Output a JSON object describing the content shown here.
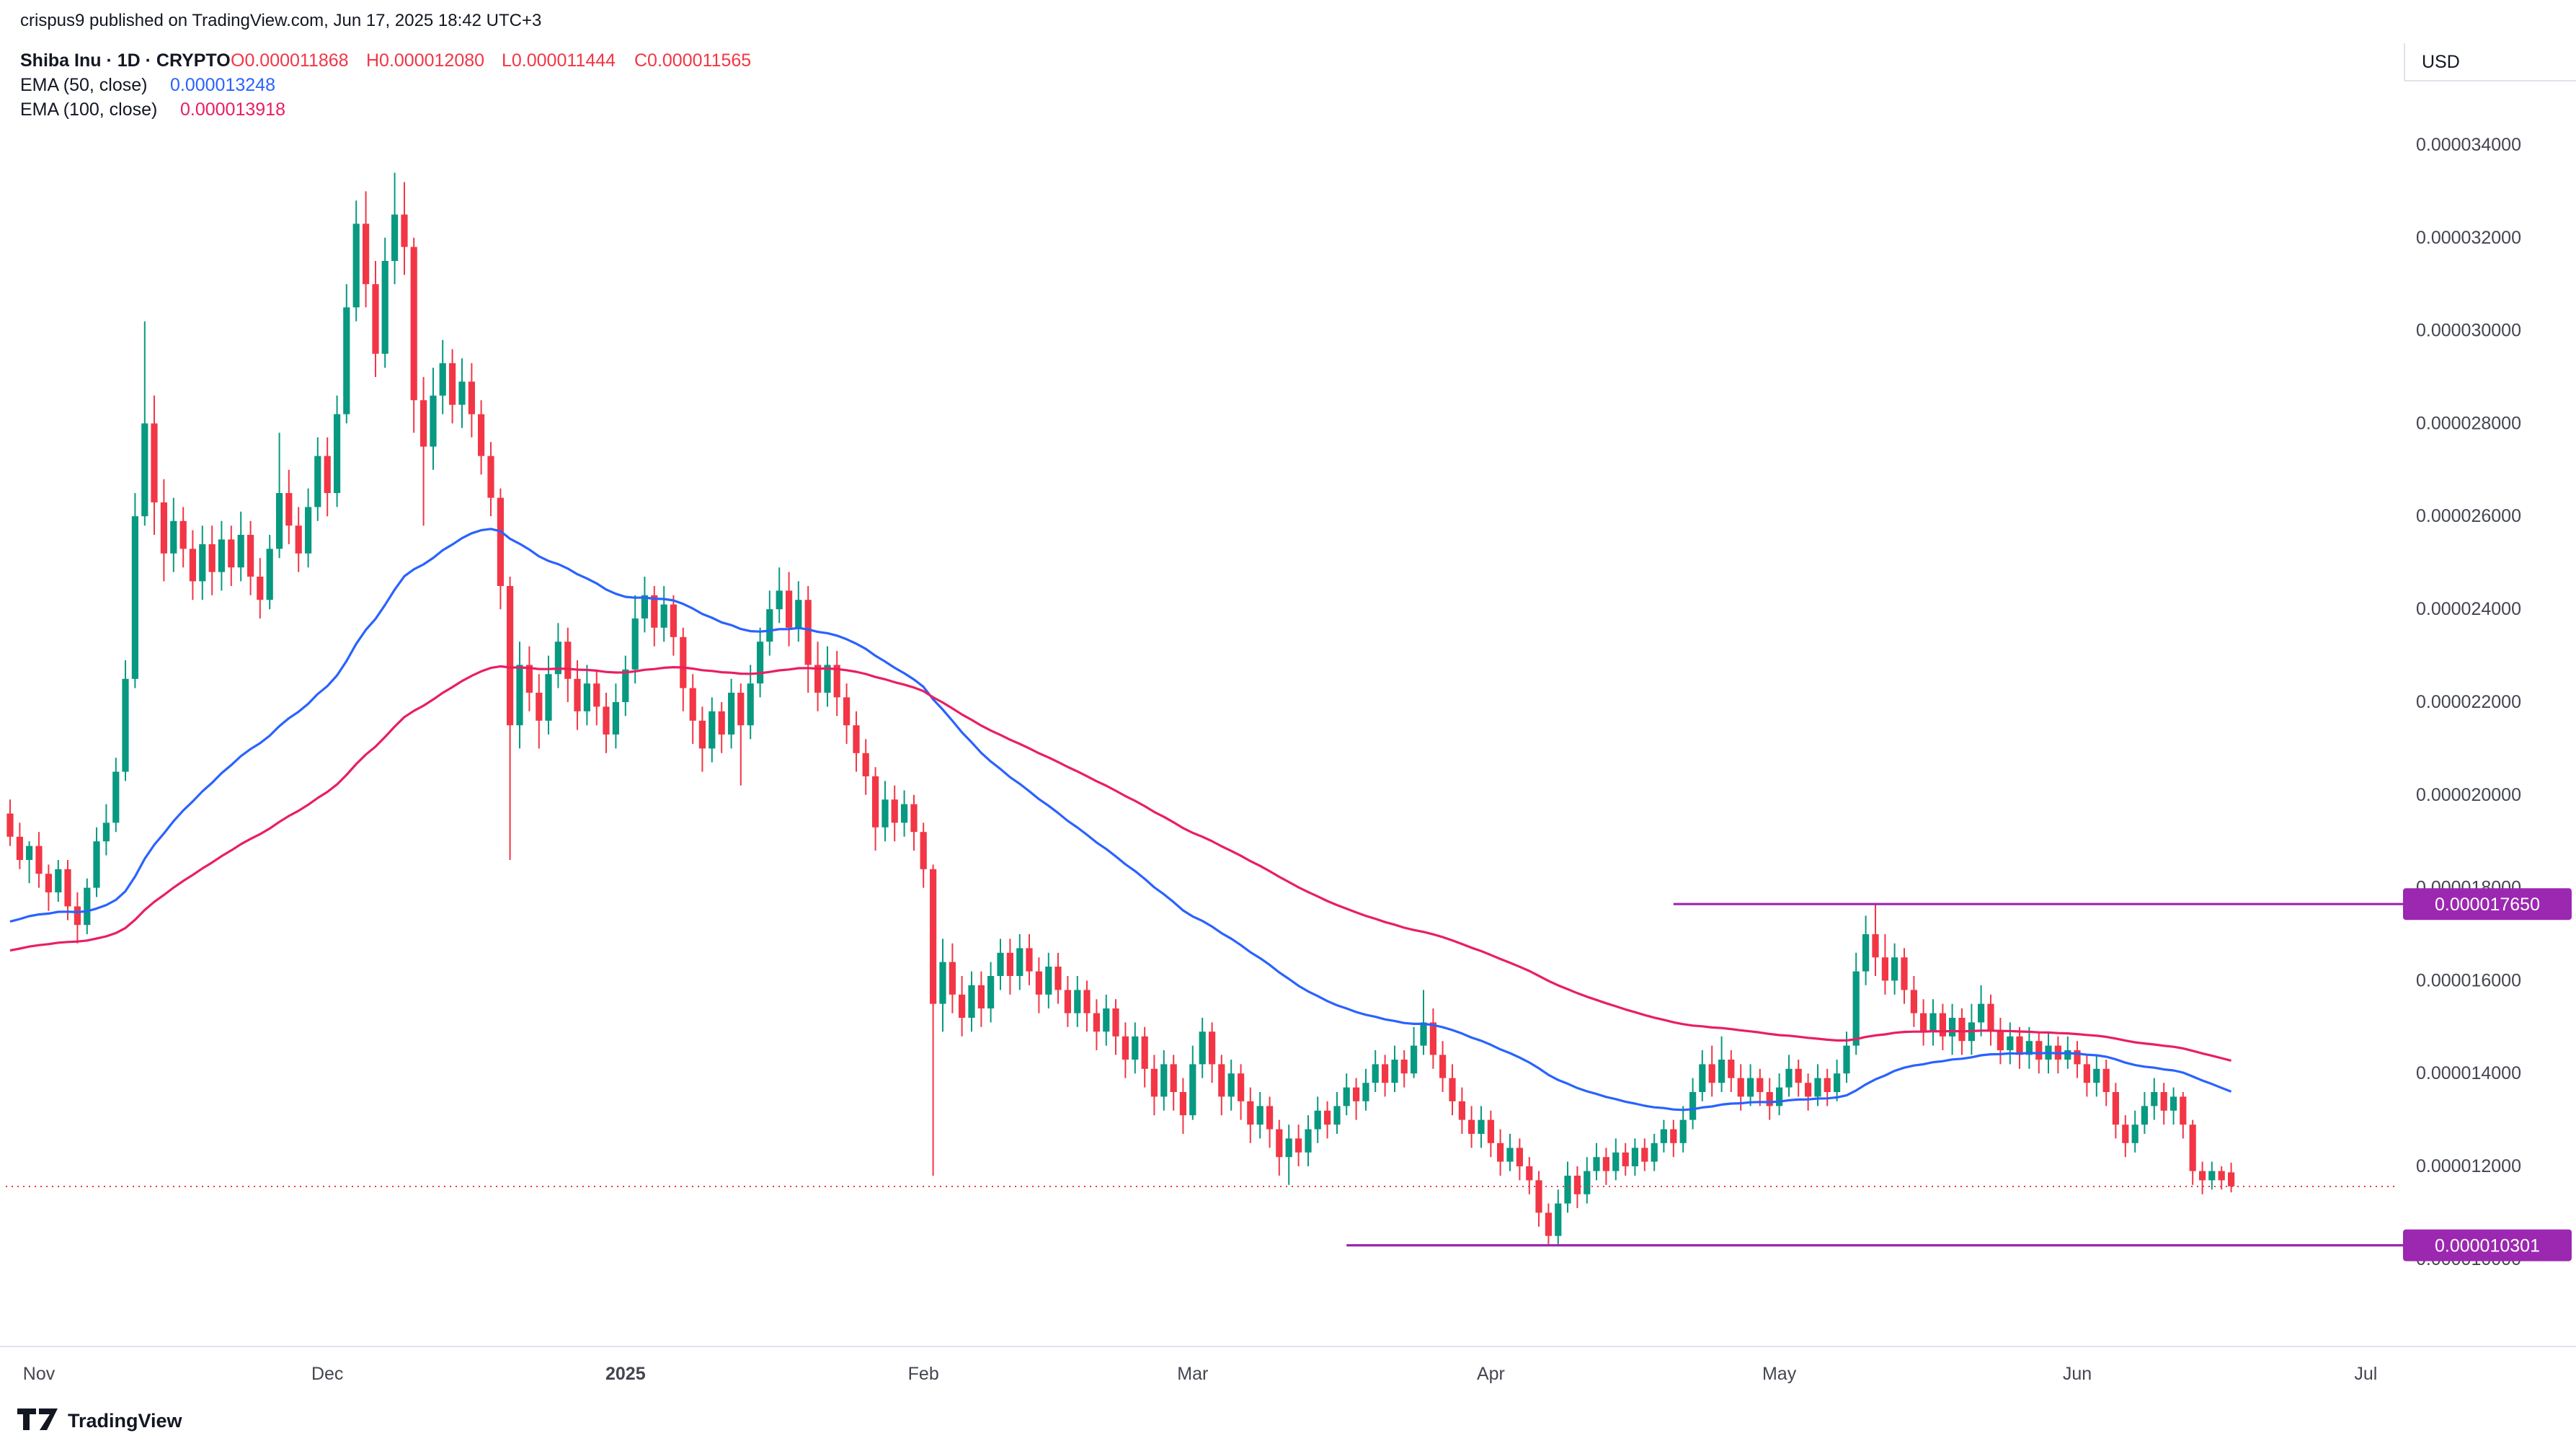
{
  "header": {
    "published": "crispus9 published on TradingView.com, Jun 17, 2025 18:42 UTC+3"
  },
  "legend": {
    "symbol": "Shiba Inu · 1D · CRYPTO",
    "o": "O0.000011868",
    "h": "H0.000012080",
    "l": "L0.000011444",
    "c": "C0.000011565",
    "ema50_label": "EMA (50, close)",
    "ema50_value": "0.000013248",
    "ema100_label": "EMA (100, close)",
    "ema100_value": "0.000013918"
  },
  "axis": {
    "currency": "USD",
    "price_ticks": [
      "0.000034000",
      "0.000032000",
      "0.000030000",
      "0.000028000",
      "0.000026000",
      "0.000024000",
      "0.000022000",
      "0.000020000",
      "0.000018000",
      "0.000016000",
      "0.000014000",
      "0.000012000",
      "0.000010000"
    ],
    "time_ticks": [
      {
        "label": "Nov",
        "day": 3
      },
      {
        "label": "Dec",
        "day": 33
      },
      {
        "label": "2025",
        "day": 64,
        "bold": true
      },
      {
        "label": "Feb",
        "day": 95
      },
      {
        "label": "Mar",
        "day": 123
      },
      {
        "label": "Apr",
        "day": 154
      },
      {
        "label": "May",
        "day": 184
      },
      {
        "label": "Jun",
        "day": 215
      },
      {
        "label": "Jul",
        "day": 245
      }
    ]
  },
  "levels": [
    {
      "label": "0.000017650",
      "value_micro": 17.65,
      "from_day": 173,
      "role": "resistance"
    },
    {
      "label": "0.000010301",
      "value_micro": 10.301,
      "from_day": 139,
      "role": "support"
    }
  ],
  "current_price": {
    "label": "0.000011565",
    "value_micro": 11.565
  },
  "colors": {
    "up": "#089981",
    "down": "#F23645",
    "level": "#9C27B0",
    "current_line": "#F23645",
    "ema50": "#2962FF",
    "ema100": "#E91E63",
    "axis_text": "#434651",
    "text": "#131722"
  },
  "footer": {
    "brand": "TradingView"
  },
  "chart_data": {
    "type": "candlestick",
    "symbol": "Shiba Inu",
    "interval": "1D",
    "market": "CRYPTO",
    "unit": "micro-USD (price values are 1e-6 USD)",
    "ohlc_format": [
      "open",
      "high",
      "low",
      "close"
    ],
    "x_range": "Oct 29, 2024 – Jun 17, 2025 (daily)",
    "ylim_micro": [
      8.12,
      37.12
    ],
    "grid": false,
    "emas": [
      {
        "period": 50,
        "color": "#2962FF",
        "seed_micro": 17.2,
        "last_value": "0.000013248"
      },
      {
        "period": 100,
        "color": "#E91E63",
        "seed_micro": 16.6,
        "last_value": "0.000013918"
      }
    ],
    "candles": [
      [
        19.6,
        19.9,
        18.9,
        19.1
      ],
      [
        19.1,
        19.4,
        18.4,
        18.6
      ],
      [
        18.6,
        19.0,
        18.1,
        18.9
      ],
      [
        18.9,
        19.2,
        18.0,
        18.3
      ],
      [
        18.3,
        18.5,
        17.5,
        17.9
      ],
      [
        17.9,
        18.6,
        17.7,
        18.4
      ],
      [
        18.4,
        18.6,
        17.3,
        17.6
      ],
      [
        17.6,
        17.9,
        16.8,
        17.2
      ],
      [
        17.2,
        18.2,
        17.0,
        18.0
      ],
      [
        18.0,
        19.3,
        17.8,
        19.0
      ],
      [
        19.0,
        19.8,
        18.7,
        19.4
      ],
      [
        19.4,
        20.8,
        19.2,
        20.5
      ],
      [
        20.5,
        22.9,
        20.3,
        22.5
      ],
      [
        22.5,
        26.5,
        22.3,
        26.0
      ],
      [
        26.0,
        30.2,
        25.8,
        28.0
      ],
      [
        28.0,
        28.6,
        25.6,
        26.3
      ],
      [
        26.3,
        26.8,
        24.6,
        25.2
      ],
      [
        25.2,
        26.4,
        24.8,
        25.9
      ],
      [
        25.9,
        26.2,
        24.9,
        25.3
      ],
      [
        25.3,
        25.7,
        24.2,
        24.6
      ],
      [
        24.6,
        25.8,
        24.2,
        25.4
      ],
      [
        25.4,
        25.8,
        24.3,
        24.8
      ],
      [
        24.8,
        25.9,
        24.4,
        25.5
      ],
      [
        25.5,
        25.8,
        24.5,
        24.9
      ],
      [
        24.9,
        26.1,
        24.6,
        25.6
      ],
      [
        25.6,
        25.9,
        24.3,
        24.7
      ],
      [
        24.7,
        25.1,
        23.8,
        24.2
      ],
      [
        24.2,
        25.6,
        24.0,
        25.3
      ],
      [
        25.3,
        27.8,
        25.1,
        26.5
      ],
      [
        26.5,
        27.0,
        25.4,
        25.8
      ],
      [
        25.8,
        26.2,
        24.8,
        25.2
      ],
      [
        25.2,
        26.6,
        24.9,
        26.2
      ],
      [
        26.2,
        27.7,
        25.9,
        27.3
      ],
      [
        27.3,
        27.7,
        26.0,
        26.5
      ],
      [
        26.5,
        28.6,
        26.2,
        28.2
      ],
      [
        28.2,
        31.0,
        28.0,
        30.5
      ],
      [
        30.5,
        32.8,
        30.2,
        32.3
      ],
      [
        32.3,
        33.0,
        30.5,
        31.0
      ],
      [
        31.0,
        31.5,
        29.0,
        29.5
      ],
      [
        29.5,
        32.0,
        29.2,
        31.5
      ],
      [
        31.5,
        33.4,
        31.0,
        32.5
      ],
      [
        32.5,
        33.2,
        31.2,
        31.8
      ],
      [
        31.8,
        32.0,
        27.8,
        28.5
      ],
      [
        28.5,
        29.0,
        25.8,
        27.5
      ],
      [
        27.5,
        29.2,
        27.0,
        28.6
      ],
      [
        28.6,
        29.8,
        28.2,
        29.3
      ],
      [
        29.3,
        29.6,
        28.0,
        28.4
      ],
      [
        28.4,
        29.4,
        27.9,
        28.9
      ],
      [
        28.9,
        29.3,
        27.7,
        28.2
      ],
      [
        28.2,
        28.5,
        26.9,
        27.3
      ],
      [
        27.3,
        27.6,
        26.0,
        26.4
      ],
      [
        26.4,
        26.6,
        24.0,
        24.5
      ],
      [
        24.5,
        24.7,
        18.6,
        21.5
      ],
      [
        21.5,
        23.3,
        21.0,
        22.8
      ],
      [
        22.8,
        23.2,
        21.8,
        22.2
      ],
      [
        22.2,
        22.6,
        21.0,
        21.6
      ],
      [
        21.6,
        23.0,
        21.3,
        22.6
      ],
      [
        22.6,
        23.7,
        22.3,
        23.3
      ],
      [
        23.3,
        23.6,
        22.0,
        22.5
      ],
      [
        22.5,
        22.9,
        21.4,
        21.8
      ],
      [
        21.8,
        22.8,
        21.5,
        22.4
      ],
      [
        22.4,
        22.7,
        21.5,
        21.9
      ],
      [
        21.9,
        22.2,
        20.9,
        21.3
      ],
      [
        21.3,
        22.4,
        21.0,
        22.0
      ],
      [
        22.0,
        23.0,
        21.7,
        22.7
      ],
      [
        22.7,
        24.3,
        22.4,
        23.8
      ],
      [
        23.8,
        24.7,
        23.5,
        24.3
      ],
      [
        24.3,
        24.5,
        23.2,
        23.6
      ],
      [
        23.6,
        24.5,
        23.3,
        24.1
      ],
      [
        24.1,
        24.3,
        23.0,
        23.4
      ],
      [
        23.4,
        23.6,
        21.8,
        22.3
      ],
      [
        22.3,
        22.6,
        21.1,
        21.6
      ],
      [
        21.6,
        21.9,
        20.5,
        21.0
      ],
      [
        21.0,
        22.1,
        20.7,
        21.8
      ],
      [
        21.8,
        22.0,
        20.9,
        21.3
      ],
      [
        21.3,
        22.5,
        21.0,
        22.2
      ],
      [
        22.2,
        22.4,
        20.2,
        21.5
      ],
      [
        21.5,
        22.8,
        21.2,
        22.4
      ],
      [
        22.4,
        23.6,
        22.1,
        23.3
      ],
      [
        23.3,
        24.4,
        23.0,
        24.0
      ],
      [
        24.0,
        24.9,
        23.7,
        24.4
      ],
      [
        24.4,
        24.8,
        23.2,
        23.6
      ],
      [
        23.6,
        24.6,
        23.3,
        24.2
      ],
      [
        24.2,
        24.5,
        22.2,
        22.8
      ],
      [
        22.8,
        23.3,
        21.8,
        22.2
      ],
      [
        22.2,
        23.2,
        21.9,
        22.8
      ],
      [
        22.8,
        23.1,
        21.7,
        22.1
      ],
      [
        22.1,
        22.4,
        21.1,
        21.5
      ],
      [
        21.5,
        21.8,
        20.5,
        20.9
      ],
      [
        20.9,
        21.2,
        20.0,
        20.4
      ],
      [
        20.4,
        20.6,
        18.8,
        19.3
      ],
      [
        19.3,
        20.3,
        19.0,
        19.9
      ],
      [
        19.9,
        20.2,
        19.0,
        19.4
      ],
      [
        19.4,
        20.1,
        19.1,
        19.8
      ],
      [
        19.8,
        20.0,
        18.8,
        19.2
      ],
      [
        19.2,
        19.4,
        18.0,
        18.4
      ],
      [
        18.4,
        18.5,
        11.8,
        15.5
      ],
      [
        15.5,
        16.9,
        14.9,
        16.4
      ],
      [
        16.4,
        16.8,
        15.3,
        15.7
      ],
      [
        15.7,
        16.1,
        14.8,
        15.2
      ],
      [
        15.2,
        16.2,
        14.9,
        15.9
      ],
      [
        15.9,
        16.2,
        15.0,
        15.4
      ],
      [
        15.4,
        16.4,
        15.1,
        16.1
      ],
      [
        16.1,
        16.9,
        15.8,
        16.6
      ],
      [
        16.6,
        16.9,
        15.7,
        16.1
      ],
      [
        16.1,
        17.0,
        15.8,
        16.7
      ],
      [
        16.7,
        17.0,
        15.9,
        16.2
      ],
      [
        16.2,
        16.5,
        15.3,
        15.7
      ],
      [
        15.7,
        16.6,
        15.4,
        16.3
      ],
      [
        16.3,
        16.6,
        15.5,
        15.8
      ],
      [
        15.8,
        16.1,
        15.0,
        15.3
      ],
      [
        15.3,
        16.1,
        15.0,
        15.8
      ],
      [
        15.8,
        16.0,
        14.9,
        15.3
      ],
      [
        15.3,
        15.6,
        14.5,
        14.9
      ],
      [
        14.9,
        15.7,
        14.6,
        15.4
      ],
      [
        15.4,
        15.6,
        14.4,
        14.8
      ],
      [
        14.8,
        15.1,
        13.9,
        14.3
      ],
      [
        14.3,
        15.1,
        14.0,
        14.8
      ],
      [
        14.8,
        15.0,
        13.7,
        14.1
      ],
      [
        14.1,
        14.4,
        13.1,
        13.5
      ],
      [
        13.5,
        14.5,
        13.2,
        14.2
      ],
      [
        14.2,
        14.4,
        13.2,
        13.6
      ],
      [
        13.6,
        13.9,
        12.7,
        13.1
      ],
      [
        13.1,
        14.6,
        13.0,
        14.2
      ],
      [
        14.2,
        15.2,
        13.9,
        14.9
      ],
      [
        14.9,
        15.1,
        13.8,
        14.2
      ],
      [
        14.2,
        14.4,
        13.1,
        13.5
      ],
      [
        13.5,
        14.3,
        13.2,
        14.0
      ],
      [
        14.0,
        14.2,
        13.0,
        13.4
      ],
      [
        13.4,
        13.7,
        12.5,
        12.9
      ],
      [
        12.9,
        13.6,
        12.6,
        13.3
      ],
      [
        13.3,
        13.5,
        12.4,
        12.8
      ],
      [
        12.8,
        13.0,
        11.8,
        12.2
      ],
      [
        12.2,
        12.9,
        11.6,
        12.6
      ],
      [
        12.6,
        12.9,
        12.0,
        12.3
      ],
      [
        12.3,
        13.1,
        12.0,
        12.8
      ],
      [
        12.8,
        13.5,
        12.5,
        13.2
      ],
      [
        13.2,
        13.4,
        12.6,
        12.9
      ],
      [
        12.9,
        13.6,
        12.7,
        13.3
      ],
      [
        13.3,
        14.0,
        13.1,
        13.7
      ],
      [
        13.7,
        13.9,
        13.0,
        13.4
      ],
      [
        13.4,
        14.1,
        13.2,
        13.8
      ],
      [
        13.8,
        14.5,
        13.6,
        14.2
      ],
      [
        14.2,
        14.4,
        13.5,
        13.8
      ],
      [
        13.8,
        14.6,
        13.6,
        14.3
      ],
      [
        14.3,
        14.5,
        13.7,
        14.0
      ],
      [
        14.0,
        15.0,
        13.9,
        14.6
      ],
      [
        14.6,
        15.8,
        14.4,
        15.1
      ],
      [
        15.1,
        15.4,
        14.1,
        14.4
      ],
      [
        14.4,
        14.7,
        13.6,
        13.9
      ],
      [
        13.9,
        14.2,
        13.1,
        13.4
      ],
      [
        13.4,
        13.7,
        12.7,
        13.0
      ],
      [
        13.0,
        13.3,
        12.4,
        12.7
      ],
      [
        12.7,
        13.3,
        12.4,
        13.0
      ],
      [
        13.0,
        13.2,
        12.2,
        12.5
      ],
      [
        12.5,
        12.8,
        11.8,
        12.1
      ],
      [
        12.1,
        12.7,
        11.9,
        12.4
      ],
      [
        12.4,
        12.6,
        11.7,
        12.0
      ],
      [
        12.0,
        12.2,
        11.4,
        11.7
      ],
      [
        11.7,
        11.9,
        10.7,
        11.0
      ],
      [
        11.0,
        11.2,
        10.3,
        10.5
      ],
      [
        10.5,
        11.5,
        10.3,
        11.2
      ],
      [
        11.2,
        12.1,
        11.0,
        11.8
      ],
      [
        11.8,
        12.0,
        11.1,
        11.4
      ],
      [
        11.4,
        12.2,
        11.2,
        11.9
      ],
      [
        11.9,
        12.5,
        11.7,
        12.2
      ],
      [
        12.2,
        12.4,
        11.6,
        11.9
      ],
      [
        11.9,
        12.6,
        11.7,
        12.3
      ],
      [
        12.3,
        12.5,
        11.8,
        12.0
      ],
      [
        12.0,
        12.6,
        11.8,
        12.4
      ],
      [
        12.4,
        12.6,
        11.9,
        12.1
      ],
      [
        12.1,
        12.7,
        11.9,
        12.5
      ],
      [
        12.5,
        13.0,
        12.3,
        12.8
      ],
      [
        12.8,
        13.0,
        12.2,
        12.5
      ],
      [
        12.5,
        13.3,
        12.3,
        13.0
      ],
      [
        13.0,
        13.9,
        12.8,
        13.6
      ],
      [
        13.6,
        14.5,
        13.4,
        14.2
      ],
      [
        14.2,
        14.6,
        13.5,
        13.8
      ],
      [
        13.8,
        14.8,
        13.6,
        14.3
      ],
      [
        14.3,
        14.5,
        13.6,
        13.9
      ],
      [
        13.9,
        14.2,
        13.2,
        13.5
      ],
      [
        13.5,
        14.2,
        13.3,
        13.9
      ],
      [
        13.9,
        14.1,
        13.3,
        13.6
      ],
      [
        13.6,
        13.9,
        13.0,
        13.3
      ],
      [
        13.3,
        14.0,
        13.1,
        13.7
      ],
      [
        13.7,
        14.4,
        13.5,
        14.1
      ],
      [
        14.1,
        14.3,
        13.5,
        13.8
      ],
      [
        13.8,
        14.0,
        13.2,
        13.5
      ],
      [
        13.5,
        14.2,
        13.3,
        13.9
      ],
      [
        13.9,
        14.1,
        13.3,
        13.6
      ],
      [
        13.6,
        14.3,
        13.4,
        14.0
      ],
      [
        14.0,
        14.9,
        13.8,
        14.6
      ],
      [
        14.6,
        16.6,
        14.4,
        16.2
      ],
      [
        16.2,
        17.4,
        15.9,
        17.0
      ],
      [
        17.0,
        17.65,
        16.1,
        16.5
      ],
      [
        16.5,
        17.0,
        15.7,
        16.0
      ],
      [
        16.0,
        16.8,
        15.7,
        16.5
      ],
      [
        16.5,
        16.7,
        15.5,
        15.8
      ],
      [
        15.8,
        16.1,
        15.0,
        15.3
      ],
      [
        15.3,
        15.6,
        14.6,
        14.9
      ],
      [
        14.9,
        15.6,
        14.6,
        15.3
      ],
      [
        15.3,
        15.5,
        14.5,
        14.8
      ],
      [
        14.8,
        15.5,
        14.4,
        15.2
      ],
      [
        15.2,
        15.4,
        14.4,
        14.7
      ],
      [
        14.7,
        15.5,
        14.4,
        15.1
      ],
      [
        15.1,
        15.9,
        14.8,
        15.5
      ],
      [
        15.5,
        15.7,
        14.6,
        14.9
      ],
      [
        14.9,
        15.2,
        14.2,
        14.5
      ],
      [
        14.5,
        15.1,
        14.2,
        14.8
      ],
      [
        14.8,
        15.0,
        14.1,
        14.4
      ],
      [
        14.4,
        15.0,
        14.1,
        14.7
      ],
      [
        14.7,
        14.9,
        14.0,
        14.3
      ],
      [
        14.3,
        14.9,
        14.0,
        14.6
      ],
      [
        14.6,
        14.8,
        14.0,
        14.3
      ],
      [
        14.3,
        14.8,
        14.1,
        14.5
      ],
      [
        14.5,
        14.7,
        13.9,
        14.2
      ],
      [
        14.2,
        14.4,
        13.5,
        13.8
      ],
      [
        13.8,
        14.4,
        13.5,
        14.1
      ],
      [
        14.1,
        14.3,
        13.3,
        13.6
      ],
      [
        13.6,
        13.8,
        12.6,
        12.9
      ],
      [
        12.9,
        13.1,
        12.2,
        12.5
      ],
      [
        12.5,
        13.2,
        12.3,
        12.9
      ],
      [
        12.9,
        13.6,
        12.7,
        13.3
      ],
      [
        13.3,
        13.9,
        13.0,
        13.6
      ],
      [
        13.6,
        13.8,
        12.9,
        13.2
      ],
      [
        13.2,
        13.7,
        12.9,
        13.5
      ],
      [
        13.5,
        13.6,
        12.6,
        12.9
      ],
      [
        12.9,
        13.0,
        11.6,
        11.9
      ],
      [
        11.9,
        12.1,
        11.4,
        11.7
      ],
      [
        11.7,
        12.1,
        11.5,
        11.9
      ],
      [
        11.9,
        12.0,
        11.5,
        11.7
      ],
      [
        11.87,
        12.08,
        11.44,
        11.57
      ]
    ]
  }
}
